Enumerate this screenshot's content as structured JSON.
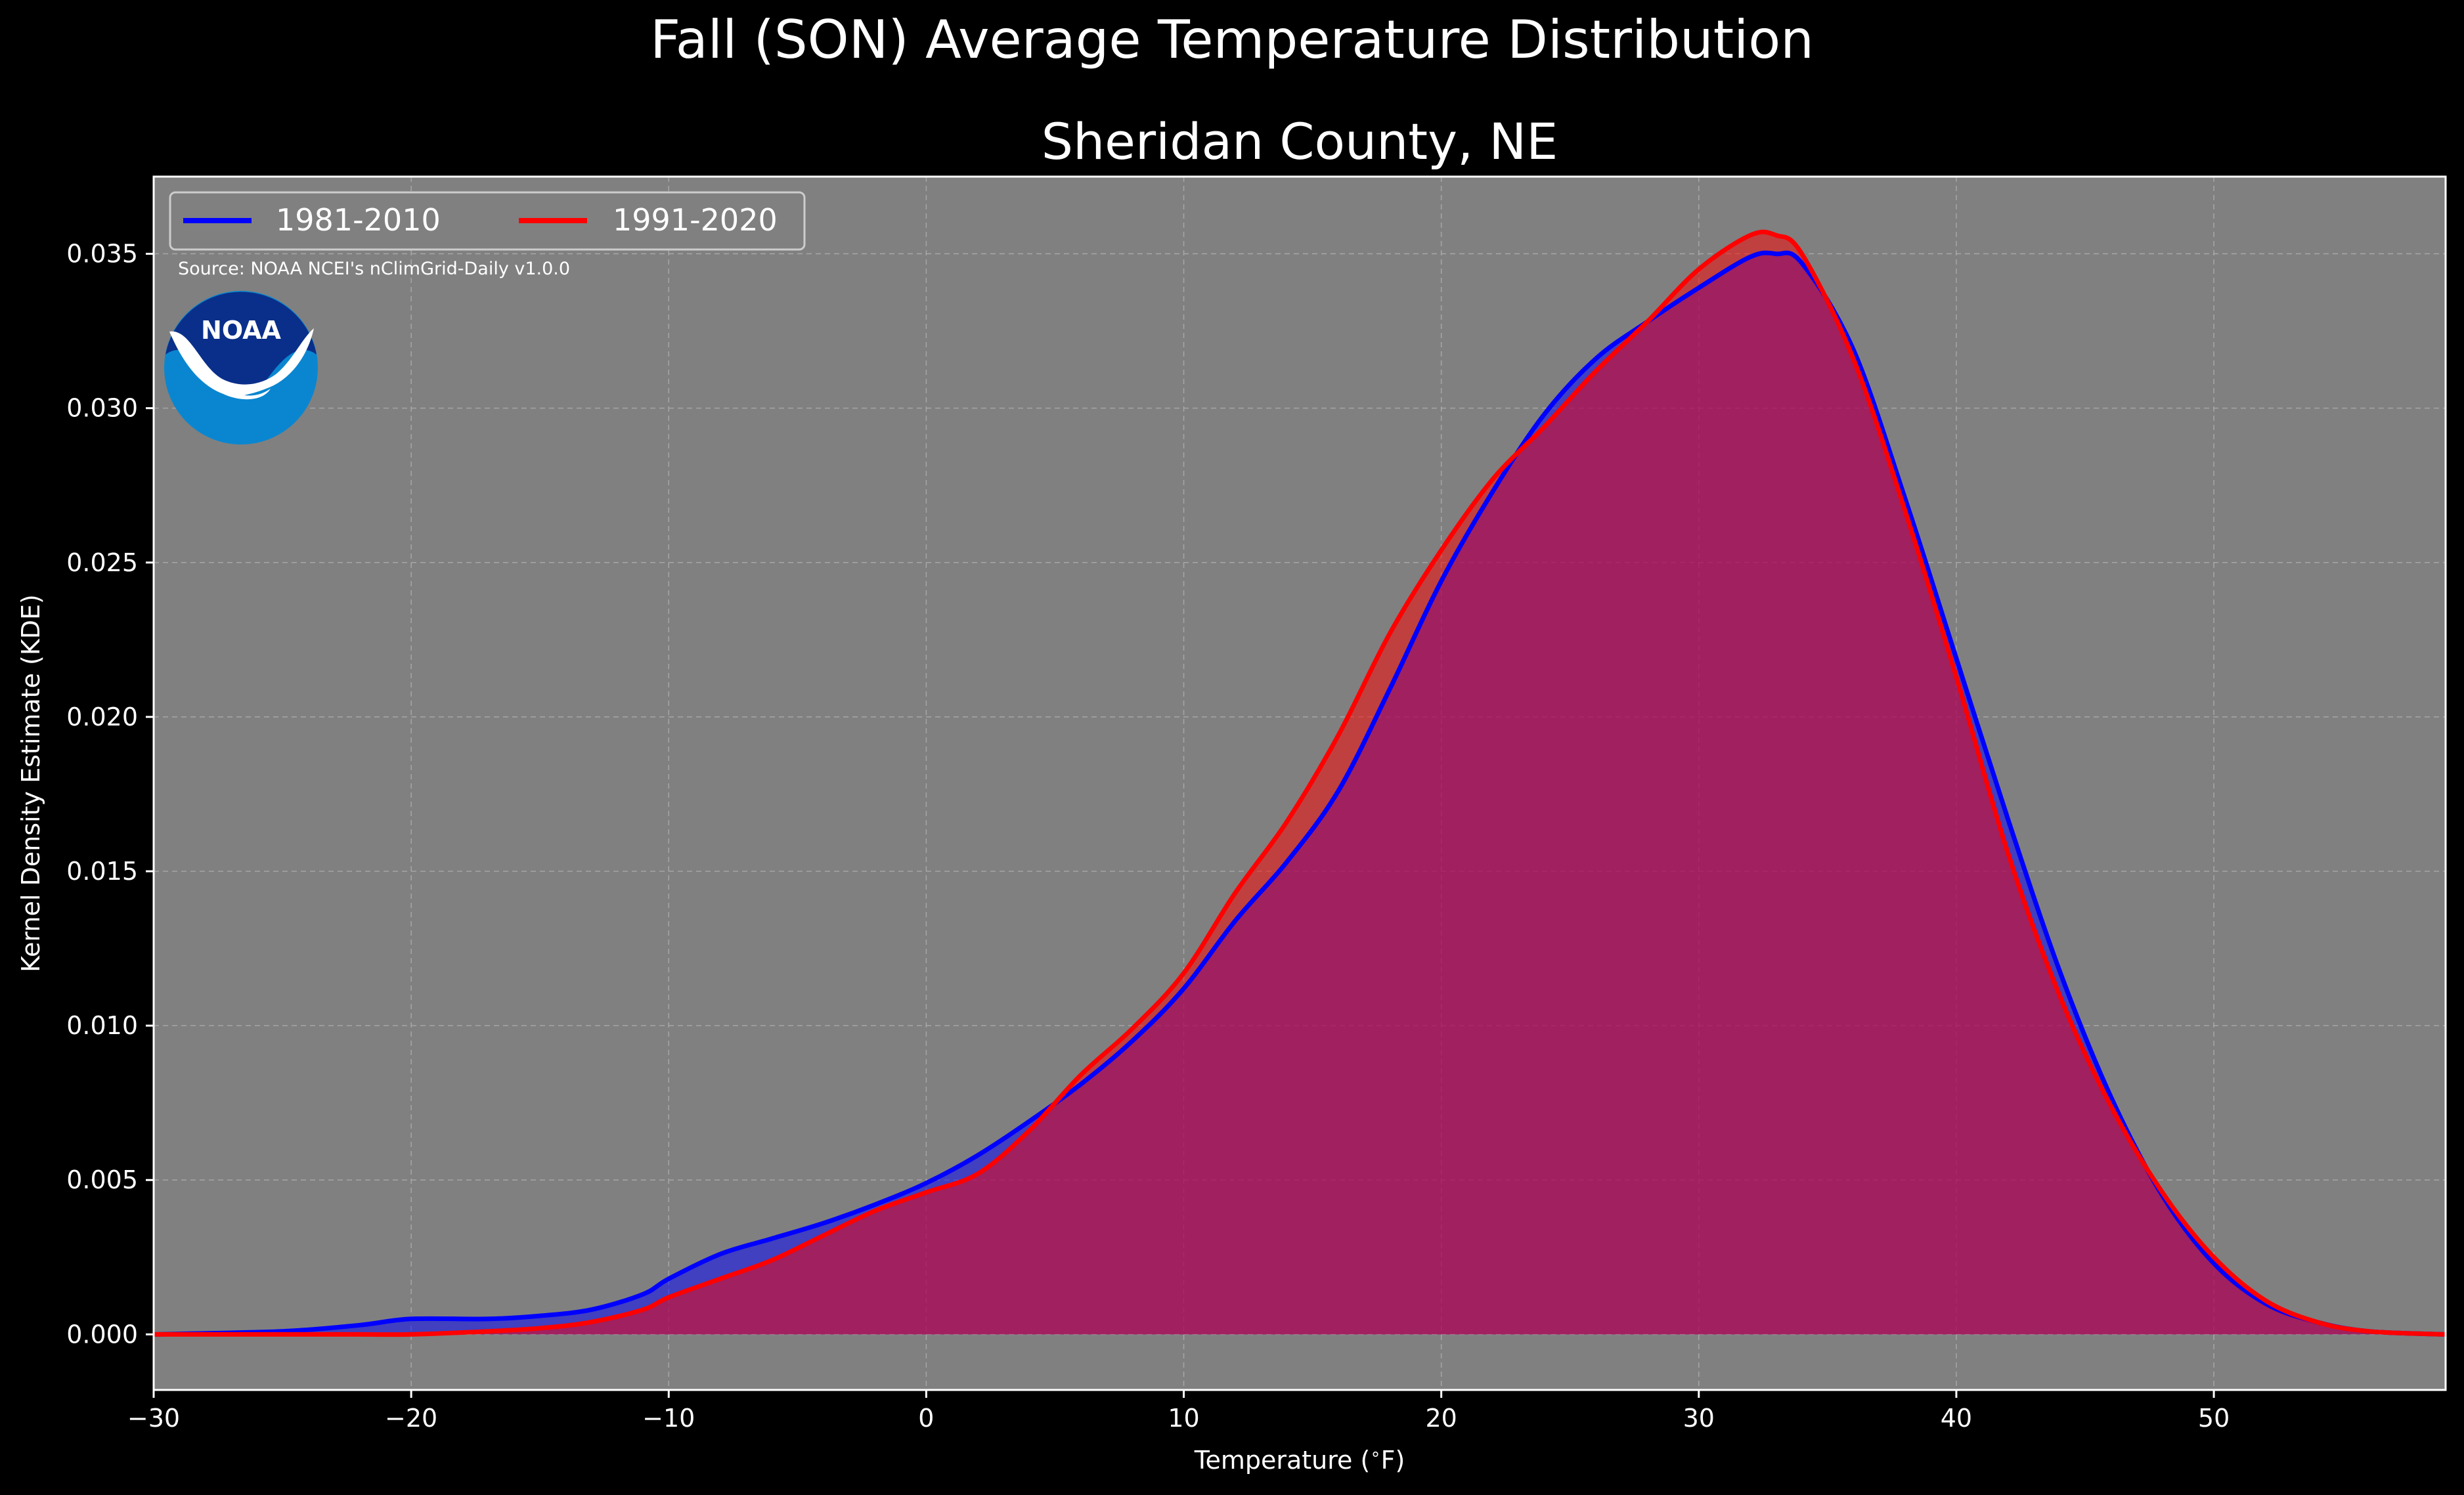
{
  "chart_data": {
    "type": "area",
    "title": "Fall (SON) Average Temperature Distribution",
    "subtitle": "Sheridan County, NE",
    "xlabel": "Temperature ($^\\circ$F)",
    "ylabel": "Kernel Density Estimate (KDE)",
    "xlim": [
      -30,
      59
    ],
    "ylim": [
      -0.0018,
      0.0375
    ],
    "xticks": [
      -30,
      -20,
      -10,
      0,
      10,
      20,
      30,
      40,
      50
    ],
    "xtick_labels": [
      "−30",
      "−20",
      "−10",
      "0",
      "10",
      "20",
      "30",
      "40",
      "50"
    ],
    "yticks": [
      0.0,
      0.005,
      0.01,
      0.015,
      0.02,
      0.025,
      0.03,
      0.035
    ],
    "ytick_labels": [
      "0.000",
      "0.005",
      "0.010",
      "0.015",
      "0.020",
      "0.025",
      "0.030",
      "0.035"
    ],
    "grid": true,
    "legend": "top-left",
    "source_text": "Source: NOAA NCEI's nClimGrid-Daily v1.0.0",
    "logo_text": "NOAA",
    "colors": {
      "background": "#000000",
      "plot_background": "#808080",
      "series_1981": "#0000ff",
      "series_1991": "#ff0000",
      "noaa_dark": "#0a2f8a",
      "noaa_light": "#0a86d0"
    },
    "series": [
      {
        "name": "1981-2010",
        "color": "#0000ff",
        "x": [
          -30,
          -25,
          -22,
          -20,
          -17,
          -15,
          -13,
          -11,
          -10,
          -8,
          -6,
          -4,
          -2,
          0,
          2,
          4,
          6,
          8,
          10,
          12,
          14,
          16,
          18,
          20,
          22,
          24,
          26,
          28,
          30,
          32,
          33,
          34,
          36,
          38,
          40,
          42,
          44,
          46,
          48,
          50,
          52,
          54,
          56,
          59
        ],
        "y": [
          0.0,
          0.0001,
          0.0003,
          0.0005,
          0.0005,
          0.0006,
          0.0008,
          0.0013,
          0.0018,
          0.0026,
          0.0031,
          0.0036,
          0.0042,
          0.0049,
          0.0058,
          0.0069,
          0.0081,
          0.0095,
          0.0112,
          0.0134,
          0.0153,
          0.0176,
          0.0209,
          0.0244,
          0.0273,
          0.0298,
          0.0316,
          0.0328,
          0.0339,
          0.0349,
          0.035,
          0.0347,
          0.0319,
          0.0271,
          0.0219,
          0.0167,
          0.0118,
          0.0077,
          0.0045,
          0.0023,
          0.001,
          0.0004,
          0.0001,
          0.0
        ]
      },
      {
        "name": "1991-2020",
        "color": "#ff0000",
        "x": [
          -30,
          -25,
          -22,
          -20,
          -17,
          -15,
          -13,
          -11,
          -10,
          -8,
          -6,
          -4,
          -2,
          0,
          2,
          4,
          6,
          8,
          10,
          12,
          14,
          16,
          18,
          20,
          22,
          24,
          26,
          28,
          30,
          32,
          33,
          34,
          36,
          38,
          40,
          42,
          44,
          46,
          48,
          50,
          52,
          54,
          56,
          59
        ],
        "y": [
          0.0,
          0.0,
          0.0,
          0.0,
          0.0001,
          0.0002,
          0.0004,
          0.0008,
          0.0012,
          0.0018,
          0.0024,
          0.0032,
          0.004,
          0.0046,
          0.0052,
          0.0066,
          0.0084,
          0.0099,
          0.0117,
          0.0143,
          0.0166,
          0.0194,
          0.0227,
          0.0254,
          0.0277,
          0.0294,
          0.0312,
          0.0328,
          0.0345,
          0.0356,
          0.0356,
          0.035,
          0.0316,
          0.0267,
          0.0213,
          0.0156,
          0.011,
          0.0074,
          0.0046,
          0.0025,
          0.0011,
          0.0004,
          0.0001,
          0.0
        ]
      }
    ]
  }
}
